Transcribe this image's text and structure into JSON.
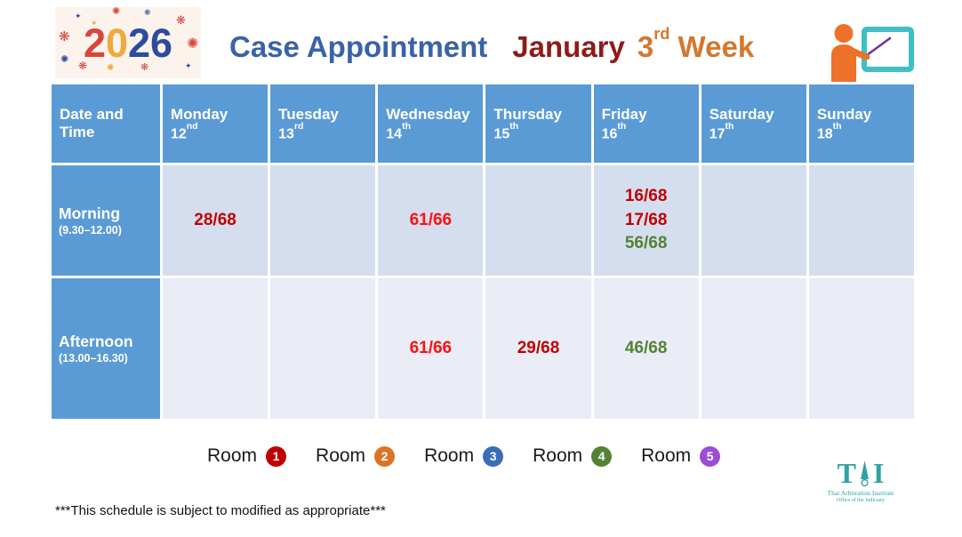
{
  "logo_2026": {
    "background": "#FCF3EC",
    "digits": [
      {
        "char": "2",
        "color": "#D8453C"
      },
      {
        "char": "0",
        "color": "#EFA93C"
      },
      {
        "char": "2",
        "color": "#2C4C9E"
      },
      {
        "char": "6",
        "color": "#2C4C9E"
      }
    ]
  },
  "icons": {
    "firework_burst": "❋",
    "firework_star": "✺",
    "sparkle": "✦"
  },
  "title": {
    "main": "Case Appointment",
    "month": "January",
    "week_number": "3",
    "week_ordinal": "rd",
    "week_word": " Week",
    "main_color": "#3A62A8",
    "month_color": "#8E1B1B",
    "week_color": "#D4772E"
  },
  "table": {
    "corner_label": "Date and Time",
    "header_bg": "#5B9BD5",
    "row_bgs": [
      "#D5DEEF",
      "#EAEDF6"
    ],
    "days": [
      {
        "name": "Monday",
        "date": "12",
        "ordinal": "nd"
      },
      {
        "name": "Tuesday",
        "date": "13",
        "ordinal": "rd"
      },
      {
        "name": "Wednesday",
        "date": "14",
        "ordinal": "th"
      },
      {
        "name": "Thursday",
        "date": "15",
        "ordinal": "th"
      },
      {
        "name": "Friday",
        "date": "16",
        "ordinal": "th"
      },
      {
        "name": "Saturday",
        "date": "17",
        "ordinal": "th"
      },
      {
        "name": "Sunday",
        "date": "18",
        "ordinal": "th"
      }
    ],
    "rows": [
      {
        "label": "Morning",
        "time": "(9.30–12.00)",
        "cells": [
          {
            "entries": [
              {
                "text": "28/68",
                "color": "#C00000"
              }
            ]
          },
          {
            "entries": []
          },
          {
            "entries": [
              {
                "text": "61/66",
                "color": "#FF1010"
              }
            ]
          },
          {
            "entries": []
          },
          {
            "entries": [
              {
                "text": "16/68",
                "color": "#C00000"
              },
              {
                "text": "17/68",
                "color": "#C00000"
              },
              {
                "text": "56/68",
                "color": "#548235"
              }
            ]
          },
          {
            "entries": []
          },
          {
            "entries": []
          }
        ]
      },
      {
        "label": "Afternoon",
        "time": "(13.00–16.30)",
        "cells": [
          {
            "entries": []
          },
          {
            "entries": []
          },
          {
            "entries": [
              {
                "text": "61/66",
                "color": "#FF1010"
              }
            ]
          },
          {
            "entries": [
              {
                "text": "29/68",
                "color": "#C00000"
              }
            ]
          },
          {
            "entries": [
              {
                "text": "46/68",
                "color": "#548235"
              }
            ]
          },
          {
            "entries": []
          },
          {
            "entries": []
          }
        ]
      }
    ]
  },
  "legend": {
    "items": [
      {
        "label": "Room",
        "number": "1",
        "color": "#C00000"
      },
      {
        "label": "Room",
        "number": "2",
        "color": "#DC7428"
      },
      {
        "label": "Room",
        "number": "3",
        "color": "#3B6CB8"
      },
      {
        "label": "Room",
        "number": "4",
        "color": "#548235"
      },
      {
        "label": "Room",
        "number": "5",
        "color": "#9B4DD3"
      }
    ]
  },
  "footnote": "***This schedule is subject to modified as appropriate***",
  "tai_logo": {
    "letter_left": "T",
    "letter_right": "I",
    "line1": "Thai Arbitration Institute",
    "line2": "Office of the Judiciary",
    "color": "#2FA3A0"
  },
  "presenter_colors": {
    "person": "#ED7129",
    "board_border": "#3FBFC4",
    "pointer": "#7030A0"
  }
}
